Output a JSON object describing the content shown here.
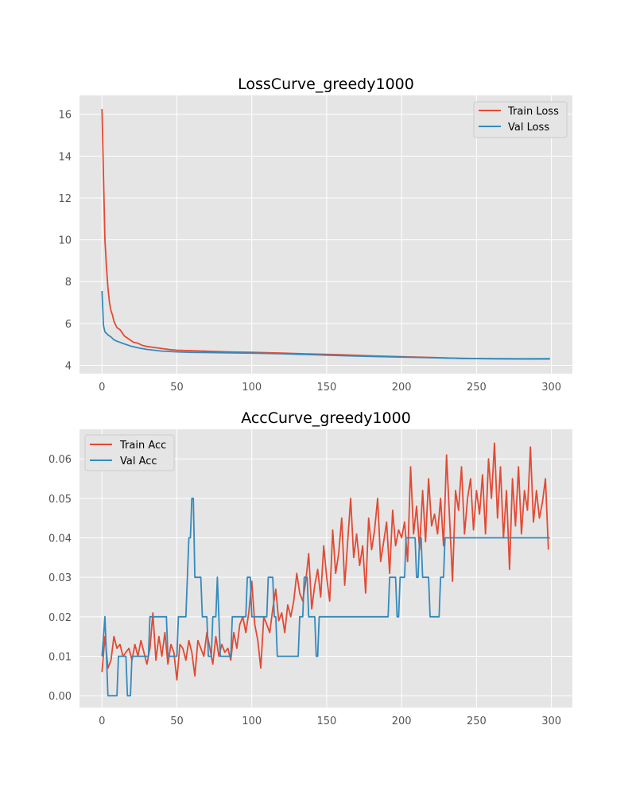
{
  "colors": {
    "train": "#e24a33",
    "val": "#348abd",
    "panel_bg": "#e5e5e5",
    "grid": "#ffffff",
    "tick_label": "#555555"
  },
  "chart_data": [
    {
      "type": "line",
      "title": "LossCurve_greedy1000",
      "xlabel": "",
      "ylabel": "",
      "xlim": [
        -15,
        314
      ],
      "ylim": [
        3.6,
        16.9
      ],
      "xticks": [
        0,
        50,
        100,
        150,
        200,
        250,
        300
      ],
      "yticks": [
        4,
        6,
        8,
        10,
        12,
        14,
        16
      ],
      "grid": true,
      "legend_position": "top-right",
      "series": [
        {
          "name": "Train Loss",
          "color": "#e24a33",
          "x": [
            0,
            1,
            2,
            3,
            4,
            5,
            6,
            7,
            8,
            10,
            12,
            15,
            18,
            21,
            24,
            27,
            30,
            35,
            40,
            45,
            50,
            60,
            70,
            80,
            90,
            100,
            120,
            140,
            160,
            180,
            200,
            220,
            240,
            260,
            280,
            299
          ],
          "y": [
            16.25,
            13.0,
            10.0,
            8.7,
            7.7,
            7.0,
            6.6,
            6.4,
            6.1,
            5.8,
            5.7,
            5.4,
            5.25,
            5.1,
            5.05,
            4.95,
            4.9,
            4.85,
            4.8,
            4.75,
            4.72,
            4.7,
            4.67,
            4.65,
            4.63,
            4.62,
            4.58,
            4.54,
            4.5,
            4.45,
            4.41,
            4.37,
            4.33,
            4.31,
            4.3,
            4.3
          ]
        },
        {
          "name": "Val Loss",
          "color": "#348abd",
          "x": [
            0,
            1,
            2,
            4,
            6,
            8,
            10,
            15,
            20,
            25,
            30,
            40,
            50,
            60,
            80,
            100,
            120,
            140,
            160,
            180,
            200,
            220,
            240,
            260,
            280,
            299
          ],
          "y": [
            7.55,
            5.9,
            5.6,
            5.45,
            5.35,
            5.22,
            5.15,
            5.02,
            4.9,
            4.82,
            4.76,
            4.68,
            4.64,
            4.62,
            4.6,
            4.58,
            4.55,
            4.51,
            4.46,
            4.42,
            4.39,
            4.36,
            4.33,
            4.32,
            4.31,
            4.32
          ]
        }
      ]
    },
    {
      "type": "line",
      "title": "AccCurve_greedy1000",
      "xlabel": "",
      "ylabel": "",
      "xlim": [
        -15,
        314
      ],
      "ylim": [
        -0.003,
        0.0675
      ],
      "xticks": [
        0,
        50,
        100,
        150,
        200,
        250,
        300
      ],
      "yticks": [
        0.0,
        0.01,
        0.02,
        0.03,
        0.04,
        0.05,
        0.06
      ],
      "ytick_labels": [
        "0.00",
        "0.01",
        "0.02",
        "0.03",
        "0.04",
        "0.05",
        "0.06"
      ],
      "grid": true,
      "legend_position": "top-left",
      "series": [
        {
          "name": "Train Acc",
          "color": "#e24a33",
          "x": [
            0,
            2,
            4,
            6,
            8,
            10,
            12,
            14,
            16,
            18,
            20,
            22,
            24,
            26,
            28,
            30,
            32,
            34,
            36,
            38,
            40,
            42,
            44,
            46,
            48,
            50,
            52,
            54,
            56,
            58,
            60,
            62,
            64,
            66,
            68,
            70,
            72,
            74,
            76,
            78,
            80,
            82,
            84,
            86,
            88,
            90,
            92,
            94,
            96,
            98,
            100,
            102,
            104,
            106,
            108,
            110,
            112,
            114,
            116,
            118,
            120,
            122,
            124,
            126,
            128,
            130,
            132,
            134,
            136,
            138,
            140,
            142,
            144,
            146,
            148,
            150,
            152,
            154,
            156,
            158,
            160,
            162,
            164,
            166,
            168,
            170,
            172,
            174,
            176,
            178,
            180,
            182,
            184,
            186,
            188,
            190,
            192,
            194,
            196,
            198,
            200,
            202,
            204,
            206,
            208,
            210,
            212,
            214,
            216,
            218,
            220,
            222,
            224,
            226,
            228,
            230,
            232,
            234,
            236,
            238,
            240,
            242,
            244,
            246,
            248,
            250,
            252,
            254,
            256,
            258,
            260,
            262,
            264,
            266,
            268,
            270,
            272,
            274,
            276,
            278,
            280,
            282,
            284,
            286,
            288,
            290,
            292,
            294,
            296,
            298
          ],
          "y": [
            0.006,
            0.015,
            0.007,
            0.009,
            0.015,
            0.012,
            0.013,
            0.01,
            0.011,
            0.012,
            0.009,
            0.013,
            0.01,
            0.014,
            0.011,
            0.008,
            0.012,
            0.021,
            0.009,
            0.015,
            0.01,
            0.016,
            0.008,
            0.013,
            0.011,
            0.004,
            0.013,
            0.012,
            0.009,
            0.014,
            0.011,
            0.005,
            0.014,
            0.012,
            0.01,
            0.016,
            0.012,
            0.008,
            0.015,
            0.01,
            0.013,
            0.011,
            0.012,
            0.009,
            0.016,
            0.012,
            0.018,
            0.02,
            0.016,
            0.021,
            0.029,
            0.018,
            0.014,
            0.007,
            0.02,
            0.018,
            0.016,
            0.022,
            0.027,
            0.019,
            0.021,
            0.016,
            0.023,
            0.02,
            0.024,
            0.031,
            0.026,
            0.024,
            0.029,
            0.036,
            0.022,
            0.028,
            0.032,
            0.025,
            0.038,
            0.03,
            0.024,
            0.042,
            0.031,
            0.036,
            0.045,
            0.028,
            0.039,
            0.05,
            0.035,
            0.041,
            0.033,
            0.038,
            0.026,
            0.045,
            0.037,
            0.042,
            0.05,
            0.034,
            0.039,
            0.044,
            0.031,
            0.047,
            0.038,
            0.042,
            0.04,
            0.044,
            0.034,
            0.058,
            0.041,
            0.048,
            0.037,
            0.052,
            0.039,
            0.055,
            0.043,
            0.046,
            0.041,
            0.05,
            0.038,
            0.061,
            0.045,
            0.029,
            0.052,
            0.047,
            0.058,
            0.041,
            0.05,
            0.055,
            0.042,
            0.052,
            0.046,
            0.056,
            0.041,
            0.06,
            0.05,
            0.064,
            0.045,
            0.058,
            0.04,
            0.052,
            0.032,
            0.055,
            0.043,
            0.058,
            0.041,
            0.052,
            0.047,
            0.063,
            0.044,
            0.052,
            0.045,
            0.049,
            0.055,
            0.037
          ]
        },
        {
          "name": "Val Acc",
          "color": "#348abd",
          "x": [
            0,
            1,
            2,
            3,
            4,
            5,
            10,
            11,
            16,
            17,
            18,
            19,
            20,
            31,
            32,
            33,
            43,
            44,
            50,
            51,
            56,
            57,
            58,
            59,
            60,
            61,
            62,
            66,
            67,
            70,
            71,
            73,
            74,
            76,
            77,
            78,
            79,
            86,
            87,
            90,
            91,
            96,
            97,
            99,
            100,
            106,
            107,
            110,
            111,
            114,
            115,
            116,
            117,
            131,
            132,
            134,
            135,
            137,
            138,
            142,
            143,
            144,
            145,
            191,
            192,
            196,
            197,
            198,
            199,
            202,
            203,
            209,
            210,
            211,
            212,
            213,
            214,
            218,
            219,
            225,
            226,
            228,
            229,
            299
          ],
          "y": [
            0.01,
            0.015,
            0.02,
            0.01,
            0.0,
            0.0,
            0.0,
            0.01,
            0.01,
            0.0,
            0.0,
            0.0,
            0.01,
            0.01,
            0.02,
            0.02,
            0.02,
            0.01,
            0.01,
            0.02,
            0.02,
            0.03,
            0.04,
            0.04,
            0.05,
            0.05,
            0.03,
            0.03,
            0.02,
            0.02,
            0.01,
            0.01,
            0.02,
            0.02,
            0.03,
            0.02,
            0.01,
            0.01,
            0.02,
            0.02,
            0.02,
            0.02,
            0.03,
            0.03,
            0.02,
            0.02,
            0.02,
            0.02,
            0.03,
            0.03,
            0.02,
            0.02,
            0.01,
            0.01,
            0.02,
            0.02,
            0.03,
            0.03,
            0.02,
            0.02,
            0.01,
            0.01,
            0.02,
            0.02,
            0.03,
            0.03,
            0.02,
            0.02,
            0.03,
            0.03,
            0.04,
            0.04,
            0.03,
            0.03,
            0.04,
            0.04,
            0.03,
            0.03,
            0.02,
            0.02,
            0.03,
            0.03,
            0.04,
            0.04
          ]
        }
      ]
    }
  ]
}
